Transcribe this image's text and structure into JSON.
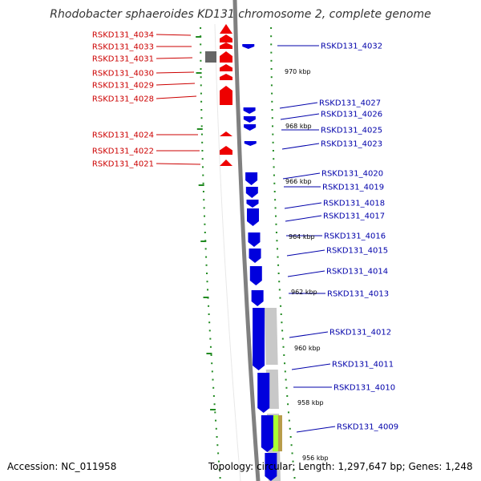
{
  "title": "Rhodobacter sphaeroides KD131 chromosome 2, complete genome",
  "accession": "Accession: NC_011958",
  "topology": "Topology: circular; Length: 1,297,647 bp; Genes: 1,248",
  "colors": {
    "forward": "#0000dd",
    "reverse": "#ee0000",
    "backbone": "#808080",
    "tick": "#228b22",
    "pseudo_gray": "#666666",
    "highlight": "#aaff33"
  },
  "reverse_genes": [
    "RSKD131_4034",
    "RSKD131_4033",
    "RSKD131_4031",
    "RSKD131_4030",
    "RSKD131_4029",
    "RSKD131_4028",
    "RSKD131_4024",
    "RSKD131_4022",
    "RSKD131_4021"
  ],
  "forward_genes": [
    "RSKD131_4032",
    "RSKD131_4027",
    "RSKD131_4026",
    "RSKD131_4025",
    "RSKD131_4023",
    "RSKD131_4020",
    "RSKD131_4019",
    "RSKD131_4018",
    "RSKD131_4017",
    "RSKD131_4016",
    "RSKD131_4015",
    "RSKD131_4014",
    "RSKD131_4013",
    "RSKD131_4012",
    "RSKD131_4011",
    "RSKD131_4010",
    "RSKD131_4009"
  ],
  "scale_labels": [
    "970 kbp",
    "968 kbp",
    "966 kbp",
    "964 kbp",
    "962 kbp",
    "960 kbp",
    "958 kbp",
    "956 kbp"
  ]
}
